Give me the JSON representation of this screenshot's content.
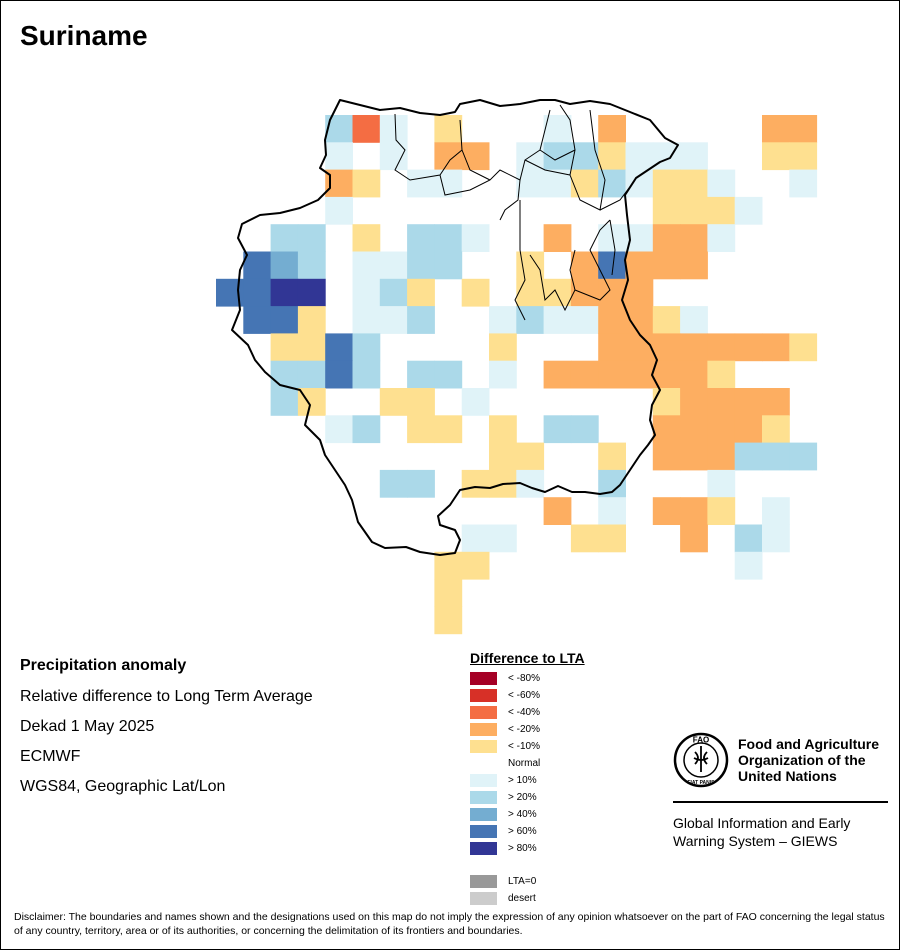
{
  "title": "Suriname",
  "info": {
    "variable": "Precipitation anomaly",
    "measure": "Relative difference to Long Term Average",
    "period": "Dekad 1 May 2025",
    "source": "ECMWF",
    "projection": "WGS84, Geographic Lat/Lon"
  },
  "legend": {
    "title": "Difference to LTA",
    "items": [
      {
        "label": "< -80%",
        "color": "#a50026"
      },
      {
        "label": "< -60%",
        "color": "#d73027"
      },
      {
        "label": "< -40%",
        "color": "#f46d43"
      },
      {
        "label": "< -20%",
        "color": "#fdae61"
      },
      {
        "label": "< -10%",
        "color": "#fee090"
      },
      {
        "label": "Normal",
        "color": "#ffffff"
      },
      {
        "label": "> 10%",
        "color": "#e0f3f8"
      },
      {
        "label": "> 20%",
        "color": "#abd9e9"
      },
      {
        "label": "> 40%",
        "color": "#74add1"
      },
      {
        "label": "> 60%",
        "color": "#4575b4"
      },
      {
        "label": "> 80%",
        "color": "#313695"
      }
    ],
    "extra": [
      {
        "label": "LTA=0",
        "color": "#999999"
      },
      {
        "label": "desert",
        "color": "#cccccc"
      }
    ]
  },
  "fao": {
    "name_line1": "Food and Agriculture",
    "name_line2": "Organization of the",
    "name_line3": "United Nations",
    "system_line1": "Global Information and Early",
    "system_line2": "Warning System – GIEWS",
    "logo_text": "FAO",
    "logo_motto": "FIAT PANIS"
  },
  "disclaimer": "Disclaimer: The boundaries and names shown and the designations used on this map do not imply the expression of any opinion whatsoever on the part of FAO concerning the legal status of any country, territory, area or of its authorities, or concerning the delimitation of its frontiers and boundaries.",
  "grid": {
    "rows": [
      "....1L0.2...0.3.....33.",
      "....0.0.33.0112000..22.",
      "....32.00..00210220..0.",
      "....0...........2220...",
      "..11.2.110..3.00330....",
      ".4/1.0011..2.34333.....",
      "4455.012.2.22333.......",
      ".442.001..01003320.....",
      "..2241....2...33333332.",
      "..1141.11.0.3333332....",
      "..12..22.0......23333..",
      "....01.22.2.11..33332..",
      "..........22..2.333111.",
      "......11.220..1...0....",
      "............3.0.332.0..",
      ".........00..22..3.10..",
      "........22.........0...",
      "........2..............",
      "........2.............."
    ]
  }
}
